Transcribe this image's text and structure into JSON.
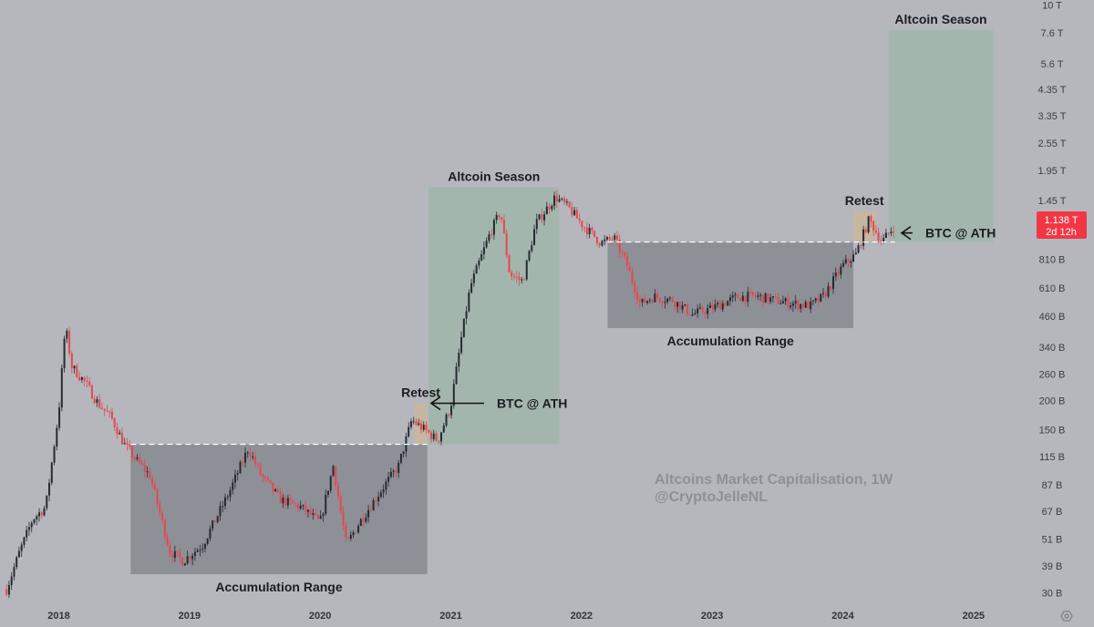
{
  "chart_data": {
    "type": "candlestick",
    "title": "",
    "scale": "log",
    "watermark": {
      "line1": "Altcoins Market Capitalisation, 1W",
      "line2": "@CryptoJelleNL"
    },
    "x_ticks": [
      "2018",
      "2019",
      "2020",
      "2021",
      "2022",
      "2023",
      "2024",
      "2025"
    ],
    "y_ticks": [
      "10 T",
      "7.6 T",
      "5.6 T",
      "4.35 T",
      "3.35 T",
      "2.55 T",
      "1.95 T",
      "1.45 T",
      "810 B",
      "610 B",
      "460 B",
      "340 B",
      "260 B",
      "200 B",
      "150 B",
      "115 B",
      "87 B",
      "67 B",
      "51 B",
      "39 B",
      "30 B"
    ],
    "y_tick_values": [
      10000,
      7600,
      5600,
      4350,
      3350,
      2550,
      1950,
      1450,
      810,
      610,
      460,
      340,
      260,
      200,
      150,
      115,
      87,
      67,
      51,
      39,
      30
    ],
    "y_range": [
      27,
      10500
    ],
    "x_range": [
      "2017.55",
      "2025.35"
    ],
    "price_label": {
      "value": "1.138 T",
      "countdown": "2d 12h",
      "value_b": 1138
    },
    "path": [
      [
        "2017.60",
        31
      ],
      [
        "2017.70",
        45
      ],
      [
        "2017.80",
        62
      ],
      [
        "2017.90",
        70
      ],
      [
        "2018.00",
        180
      ],
      [
        "2018.05",
        420
      ],
      [
        "2018.10",
        280
      ],
      [
        "2018.20",
        240
      ],
      [
        "2018.30",
        195
      ],
      [
        "2018.40",
        170
      ],
      [
        "2018.50",
        130
      ],
      [
        "2018.60",
        110
      ],
      [
        "2018.70",
        95
      ],
      [
        "2018.85",
        45
      ],
      [
        "2018.95",
        41
      ],
      [
        "2019.10",
        48
      ],
      [
        "2019.30",
        80
      ],
      [
        "2019.45",
        125
      ],
      [
        "2019.55",
        95
      ],
      [
        "2019.70",
        75
      ],
      [
        "2019.85",
        70
      ],
      [
        "2020.00",
        60
      ],
      [
        "2020.10",
        105
      ],
      [
        "2020.20",
        48
      ],
      [
        "2020.30",
        60
      ],
      [
        "2020.45",
        80
      ],
      [
        "2020.60",
        105
      ],
      [
        "2020.70",
        165
      ],
      [
        "2020.80",
        150
      ],
      [
        "2020.90",
        135
      ],
      [
        "2021.00",
        190
      ],
      [
        "2021.08",
        370
      ],
      [
        "2021.15",
        620
      ],
      [
        "2021.30",
        1050
      ],
      [
        "2021.38",
        1300
      ],
      [
        "2021.45",
        700
      ],
      [
        "2021.55",
        650
      ],
      [
        "2021.65",
        1150
      ],
      [
        "2021.80",
        1500
      ],
      [
        "2021.90",
        1350
      ],
      [
        "2022.00",
        1150
      ],
      [
        "2022.15",
        950
      ],
      [
        "2022.25",
        1000
      ],
      [
        "2022.35",
        760
      ],
      [
        "2022.45",
        520
      ],
      [
        "2022.55",
        560
      ],
      [
        "2022.70",
        540
      ],
      [
        "2022.85",
        470
      ],
      [
        "2023.00",
        500
      ],
      [
        "2023.20",
        560
      ],
      [
        "2023.35",
        560
      ],
      [
        "2023.55",
        530
      ],
      [
        "2023.75",
        510
      ],
      [
        "2023.85",
        560
      ],
      [
        "2024.00",
        760
      ],
      [
        "2024.10",
        850
      ],
      [
        "2024.20",
        1200
      ],
      [
        "2024.30",
        960
      ],
      [
        "2024.40",
        1138
      ]
    ],
    "zones": [
      {
        "type": "accumulation",
        "label": "Accumulation Range",
        "x0": "2018.55",
        "x1": "2020.82",
        "y0": 36,
        "y1": 130
      },
      {
        "type": "retest",
        "label": "Retest",
        "x0": "2020.72",
        "x1": "2020.82",
        "y0": 130,
        "y1": 195
      },
      {
        "type": "season",
        "label": "Altcoin Season",
        "x0": "2020.83",
        "x1": "2021.83",
        "y0": 130,
        "y1": 1650
      },
      {
        "type": "accumulation",
        "label": "Accumulation Range",
        "x0": "2022.20",
        "x1": "2024.08",
        "y0": 410,
        "y1": 960
      },
      {
        "type": "retest",
        "label": "Retest",
        "x0": "2024.08",
        "x1": "2024.25",
        "y0": 960,
        "y1": 1300
      },
      {
        "type": "season",
        "label": "Altcoin Season",
        "x0": "2024.35",
        "x1": "2025.15",
        "y0": 960,
        "y1": 7800
      }
    ],
    "breakout_levels": [
      {
        "value": 130,
        "x0": "2018.55",
        "x1": "2020.82"
      },
      {
        "value": 960,
        "x0": "2022.20",
        "x1": "2024.40"
      }
    ],
    "callouts": [
      {
        "text": "BTC @ ATH",
        "x": "2020.85",
        "y": 195
      },
      {
        "text": "BTC @ ATH",
        "x": "2024.45",
        "y": 1050
      }
    ]
  }
}
